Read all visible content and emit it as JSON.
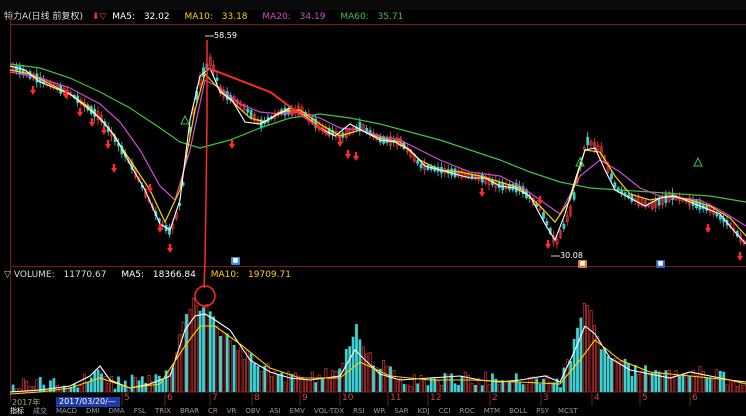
{
  "title_bar": {
    "partial": "...MA5 ... MA10 ..."
  },
  "price_legend": {
    "stock": "特力A(日线 前复权)",
    "ma5_label": "MA5:",
    "ma5_value": "32.02",
    "ma10_label": "MA10:",
    "ma10_value": "33.18",
    "ma20_label": "MA20:",
    "ma20_value": "34.19",
    "ma60_label": "MA60:",
    "ma60_value": "35.71",
    "colors": {
      "ma5": "#ffffff",
      "ma10": "#ffd200",
      "ma20": "#d24bd2",
      "ma60": "#3fc23f"
    }
  },
  "price_annotations": {
    "high": "58.59",
    "low": "30.08"
  },
  "volume_legend": {
    "volume_label": "VOLUME:",
    "volume_value": "11770.67",
    "ma5_label": "MA5:",
    "ma5_value": "18366.84",
    "ma10_label": "MA10:",
    "ma10_value": "19709.71"
  },
  "x_axis": {
    "months": [
      "5",
      "6",
      "7",
      "8",
      "9",
      "10",
      "11",
      "12",
      "2",
      "3",
      "4",
      "5",
      "6"
    ],
    "year": "2017年",
    "cursor_date": "2017/03/20/—"
  },
  "tabs": [
    "指标",
    "成交",
    "MACD",
    "DMI",
    "DMA",
    "FSL",
    "TRIX",
    "BRAR",
    "CR",
    "VR",
    "OBV",
    "ASI",
    "EMV",
    "VOL-TDX",
    "RSI",
    "WR",
    "SAR",
    "KDJ",
    "CCI",
    "ROC",
    "MTM",
    "BOLL",
    "PSY",
    "MCST"
  ],
  "markers": {
    "flag1": "■",
    "flag2": "■",
    "flag3": "■"
  }
}
